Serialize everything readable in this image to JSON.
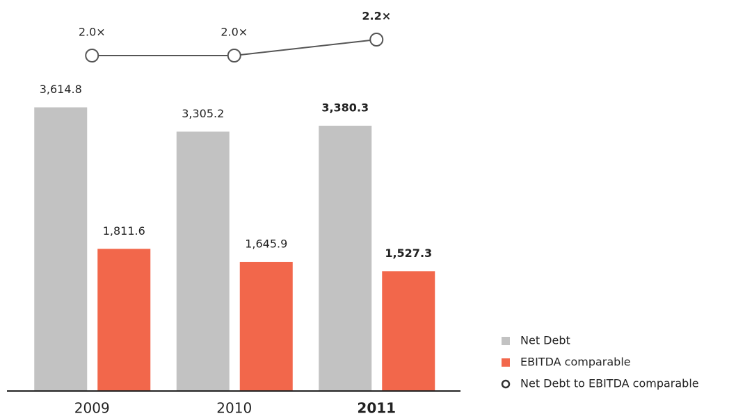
{
  "chart_data": {
    "type": "bar",
    "categories": [
      "2009",
      "2010",
      "2011"
    ],
    "series": [
      {
        "name": "Net Debt",
        "color": "#c2c2c2",
        "values": [
          3614.8,
          3305.2,
          3380.3
        ],
        "value_labels": [
          "3,614.8",
          "3,305.2",
          "3,380.3"
        ]
      },
      {
        "name": "EBITDA comparable",
        "color": "#f2674b",
        "values": [
          1811.6,
          1645.9,
          1527.3
        ],
        "value_labels": [
          "1,811.6",
          "1,645.9",
          "1,527.3"
        ]
      },
      {
        "name": "Net Debt to EBITDA comparable",
        "type": "line",
        "axis": "y2",
        "color": "#555555",
        "values": [
          2.0,
          2.0,
          2.2
        ],
        "value_labels": [
          "2.0×",
          "2.0×",
          "2.2×"
        ]
      }
    ],
    "ylim": [
      0,
      4000
    ],
    "y2lim": [
      1.6,
      2.4
    ]
  }
}
